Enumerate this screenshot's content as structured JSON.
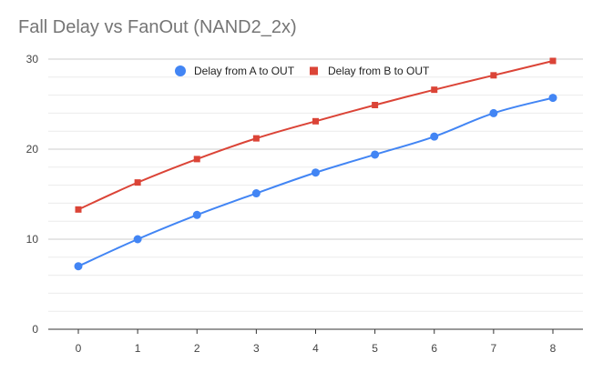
{
  "chart_data": {
    "type": "line",
    "title": "Fall Delay vs FanOut (NAND2_2x)",
    "xlabel": "",
    "ylabel": "",
    "x": [
      0,
      1,
      2,
      3,
      4,
      5,
      6,
      7,
      8
    ],
    "xlim": [
      0,
      8
    ],
    "ylim": [
      0,
      30
    ],
    "x_ticks": [
      "0",
      "1",
      "2",
      "3",
      "4",
      "5",
      "6",
      "7",
      "8"
    ],
    "y_ticks": [
      "0",
      "10",
      "20",
      "30"
    ],
    "grid": true,
    "legend_position": "top",
    "series": [
      {
        "name": "Delay from A to OUT",
        "color": "#4285f4",
        "marker": "circle",
        "values": [
          7.0,
          10.0,
          12.7,
          15.1,
          17.4,
          19.4,
          21.4,
          24.0,
          25.7
        ]
      },
      {
        "name": "Delay from B to OUT",
        "color": "#db4437",
        "marker": "square",
        "values": [
          13.3,
          16.3,
          18.9,
          21.2,
          23.1,
          24.9,
          26.6,
          28.2,
          29.8
        ]
      }
    ]
  }
}
